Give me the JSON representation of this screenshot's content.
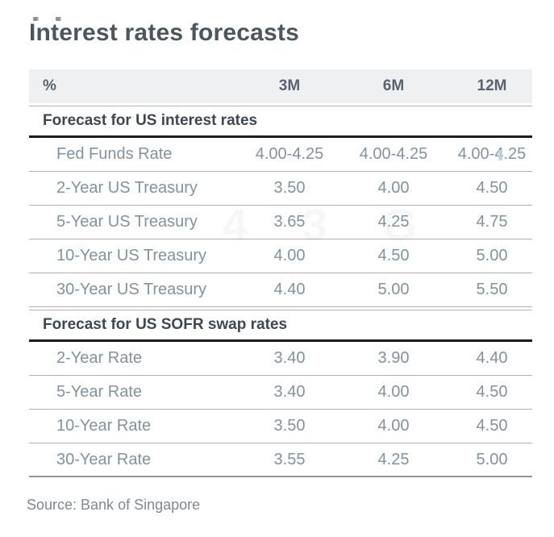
{
  "page": {
    "title": "Interest rates forecasts",
    "source": "Source: Bank of Singapore",
    "watermark_text": "4 3 G"
  },
  "table": {
    "unit_header": "%",
    "columns": [
      "3M",
      "6M",
      "12M"
    ],
    "sections": [
      {
        "header": "Forecast for US interest rates",
        "rows": [
          {
            "label": "Fed Funds Rate",
            "values": [
              "4.00-4.25",
              "4.00-4.25",
              "4.00-4.25"
            ]
          },
          {
            "label": "2-Year US Treasury",
            "values": [
              "3.50",
              "4.00",
              "4.50"
            ]
          },
          {
            "label": "5-Year US Treasury",
            "values": [
              "3.65",
              "4.25",
              "4.75"
            ]
          },
          {
            "label": "10-Year US Treasury",
            "values": [
              "4.00",
              "4.50",
              "5.00"
            ]
          },
          {
            "label": "30-Year US Treasury",
            "values": [
              "4.40",
              "5.00",
              "5.50"
            ]
          }
        ]
      },
      {
        "header": "Forecast for US SOFR swap rates",
        "rows": [
          {
            "label": "2-Year Rate",
            "values": [
              "3.40",
              "3.90",
              "4.40"
            ]
          },
          {
            "label": "5-Year Rate",
            "values": [
              "3.40",
              "4.00",
              "4.50"
            ]
          },
          {
            "label": "10-Year Rate",
            "values": [
              "3.50",
              "4.00",
              "4.50"
            ]
          },
          {
            "label": "30-Year Rate",
            "values": [
              "3.55",
              "4.25",
              "5.00"
            ]
          }
        ]
      }
    ]
  },
  "colors": {
    "title_text": "#4c565f",
    "section_header_text": "#3e4852",
    "row_text": "#8093a4",
    "column_header_text": "#5a646e",
    "header_band_bg": "#eff0f2",
    "row_separator": "#b0b2b4",
    "section_rule": "#1b1c1e",
    "table_bottom_rule": "#939597",
    "source_text": "#7c8a98"
  }
}
